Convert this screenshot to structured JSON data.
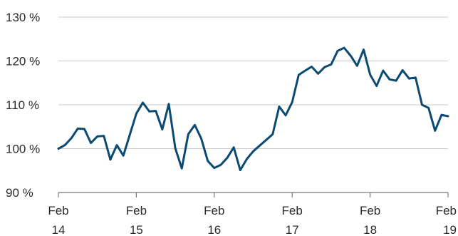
{
  "chart_data": {
    "type": "line",
    "title": "",
    "xlabel": "",
    "ylabel": "",
    "ylim": [
      90,
      130
    ],
    "yticks": [
      {
        "value": 90,
        "label": "90 %"
      },
      {
        "value": 100,
        "label": "100 %"
      },
      {
        "value": 110,
        "label": "110 %"
      },
      {
        "value": 120,
        "label": "120 %"
      },
      {
        "value": 130,
        "label": "130 %"
      }
    ],
    "xticks": [
      {
        "value": 2014,
        "month": "Feb",
        "year": "14"
      },
      {
        "value": 2015,
        "month": "Feb",
        "year": "15"
      },
      {
        "value": 2016,
        "month": "Feb",
        "year": "16"
      },
      {
        "value": 2017,
        "month": "Feb",
        "year": "17"
      },
      {
        "value": 2018,
        "month": "Feb",
        "year": "18"
      },
      {
        "value": 2019,
        "month": "Feb",
        "year": "19"
      }
    ],
    "grid": {
      "horizontal": true,
      "vertical": false
    },
    "legend": "none",
    "colors": {
      "line": "#0b4a72"
    },
    "series": [
      {
        "x": [
          "2014-02",
          "2014-03",
          "2014-04",
          "2014-05",
          "2014-06",
          "2014-07",
          "2014-08",
          "2014-09",
          "2014-10",
          "2014-11",
          "2014-12",
          "2015-01",
          "2015-02",
          "2015-03",
          "2015-04",
          "2015-05",
          "2015-06",
          "2015-07",
          "2015-08",
          "2015-09",
          "2015-10",
          "2015-11",
          "2015-12",
          "2016-01",
          "2016-02",
          "2016-03",
          "2016-04",
          "2016-05",
          "2016-06",
          "2016-07",
          "2016-08",
          "2016-09",
          "2016-10",
          "2016-11",
          "2016-12",
          "2017-01",
          "2017-02",
          "2017-03",
          "2017-04",
          "2017-05",
          "2017-06",
          "2017-07",
          "2017-08",
          "2017-09",
          "2017-10",
          "2017-11",
          "2017-12",
          "2018-01",
          "2018-02",
          "2018-03",
          "2018-04",
          "2018-05",
          "2018-06",
          "2018-07",
          "2018-08",
          "2018-09",
          "2018-10",
          "2018-11",
          "2018-12",
          "2019-01",
          "2019-02"
        ],
        "values": [
          100.0,
          100.8,
          102.4,
          104.6,
          104.5,
          101.3,
          102.8,
          102.9,
          97.5,
          100.8,
          98.4,
          103.2,
          108.0,
          110.5,
          108.5,
          108.6,
          104.4,
          110.2,
          100.1,
          95.5,
          103.3,
          105.4,
          102.3,
          97.2,
          95.6,
          96.3,
          97.9,
          100.3,
          95.1,
          97.6,
          99.4,
          100.7,
          102.0,
          103.3,
          109.6,
          107.6,
          110.6,
          116.8,
          117.8,
          118.7,
          117.1,
          118.6,
          119.2,
          122.3,
          123.0,
          121.2,
          118.9,
          122.6,
          116.9,
          114.3,
          117.8,
          115.8,
          115.5,
          117.9,
          116.0,
          116.2,
          110.0,
          109.3,
          104.1,
          107.7,
          107.4
        ]
      }
    ]
  }
}
